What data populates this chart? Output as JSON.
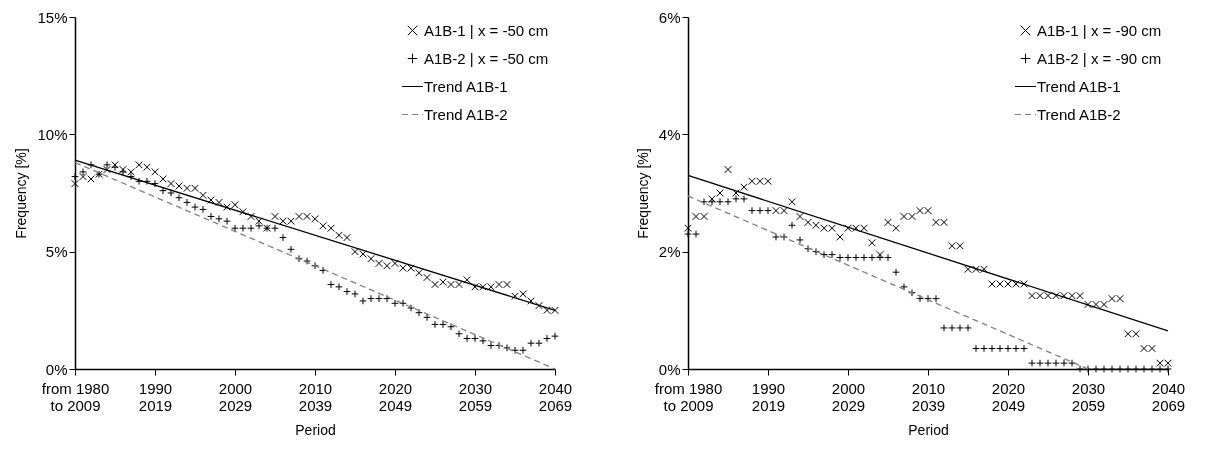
{
  "chart_data": [
    {
      "type": "scatter",
      "xlabel": "Period",
      "ylabel": "Frequency [%]",
      "legend": "top right",
      "grid": false,
      "ylim": [
        0,
        15
      ],
      "yticks": [
        {
          "value": 0,
          "label": "0%"
        },
        {
          "value": 5,
          "label": "5%"
        },
        {
          "value": 10,
          "label": "10%"
        },
        {
          "value": 15,
          "label": "15%"
        }
      ],
      "categories": [
        "from 1980\nto 2009",
        null,
        null,
        null,
        null,
        null,
        null,
        null,
        null,
        null,
        "1990\n2019",
        null,
        null,
        null,
        null,
        null,
        null,
        null,
        null,
        null,
        "2000\n2029",
        null,
        null,
        null,
        null,
        null,
        null,
        null,
        null,
        null,
        "2010\n2039",
        null,
        null,
        null,
        null,
        null,
        null,
        null,
        null,
        null,
        "2020\n2049",
        null,
        null,
        null,
        null,
        null,
        null,
        null,
        null,
        null,
        "2030\n2059",
        null,
        null,
        null,
        null,
        null,
        null,
        null,
        null,
        null,
        "2040\n2069"
      ],
      "series": [
        {
          "name": "A1B-1 | x = -50 cm",
          "marker": "x",
          "color": "#000000",
          "values": [
            7.9,
            8.2,
            8.1,
            8.3,
            8.5,
            8.7,
            8.5,
            8.4,
            8.7,
            8.6,
            8.4,
            8.1,
            7.9,
            7.8,
            7.7,
            7.7,
            7.4,
            7.2,
            7.1,
            6.9,
            7.0,
            6.7,
            6.5,
            6.3,
            6.0,
            6.5,
            6.3,
            6.3,
            6.5,
            6.5,
            6.4,
            6.1,
            6.0,
            5.7,
            5.6,
            5.0,
            4.9,
            4.7,
            4.5,
            4.4,
            4.5,
            4.3,
            4.3,
            4.1,
            3.9,
            3.6,
            3.7,
            3.6,
            3.6,
            3.8,
            3.5,
            3.5,
            3.5,
            3.6,
            3.6,
            3.1,
            3.2,
            2.9,
            2.7,
            2.5,
            2.5
          ]
        },
        {
          "name": "A1B-2 | x = -50 cm",
          "marker": "cross",
          "color": "#000000",
          "values": [
            8.2,
            8.4,
            8.7,
            8.3,
            8.7,
            8.6,
            8.4,
            8.2,
            8.0,
            8.0,
            7.9,
            7.6,
            7.5,
            7.3,
            7.1,
            6.9,
            6.8,
            6.5,
            6.4,
            6.3,
            6.0,
            6.0,
            6.0,
            6.1,
            6.0,
            6.0,
            5.6,
            5.1,
            4.7,
            4.6,
            4.4,
            4.2,
            3.6,
            3.5,
            3.3,
            3.2,
            2.9,
            3.0,
            3.0,
            3.0,
            2.8,
            2.8,
            2.6,
            2.4,
            2.2,
            1.9,
            1.9,
            1.8,
            1.5,
            1.3,
            1.3,
            1.2,
            1.0,
            1.0,
            0.9,
            0.8,
            0.8,
            1.1,
            1.1,
            1.3,
            1.4
          ]
        },
        {
          "name": "Trend A1B-1",
          "type": "line",
          "line_style": "solid",
          "color": "#000000",
          "x": [
            "from 1980\nto 2009",
            "2040\n2069"
          ],
          "values": [
            8.9,
            2.5
          ]
        },
        {
          "name": "Trend A1B-2",
          "type": "line",
          "line_style": "dashed",
          "color": "#808080",
          "x": [
            "from 1980\nto 2009",
            "2040\n2069"
          ],
          "values": [
            8.8,
            0
          ]
        }
      ]
    },
    {
      "type": "scatter",
      "xlabel": "Period",
      "ylabel": "Frequency [%]",
      "legend": "top right",
      "grid": false,
      "ylim": [
        0,
        6
      ],
      "yticks": [
        {
          "value": 0,
          "label": "0%"
        },
        {
          "value": 2,
          "label": "2%"
        },
        {
          "value": 4,
          "label": "4%"
        },
        {
          "value": 6,
          "label": "6%"
        }
      ],
      "categories": [
        "from 1980\nto 2009",
        null,
        null,
        null,
        null,
        null,
        null,
        null,
        null,
        null,
        "1990\n2019",
        null,
        null,
        null,
        null,
        null,
        null,
        null,
        null,
        null,
        "2000\n2029",
        null,
        null,
        null,
        null,
        null,
        null,
        null,
        null,
        null,
        "2010\n2039",
        null,
        null,
        null,
        null,
        null,
        null,
        null,
        null,
        null,
        "2020\n2049",
        null,
        null,
        null,
        null,
        null,
        null,
        null,
        null,
        null,
        "2030\n2059",
        null,
        null,
        null,
        null,
        null,
        null,
        null,
        null,
        null,
        "2040\n2069"
      ],
      "series": [
        {
          "name": "A1B-1 | x = -90 cm",
          "marker": "x",
          "color": "#000000",
          "values": [
            2.4,
            2.6,
            2.6,
            2.9,
            3.0,
            3.4,
            3.0,
            3.1,
            3.2,
            3.2,
            3.2,
            2.7,
            2.7,
            2.85,
            2.6,
            2.5,
            2.45,
            2.4,
            2.4,
            2.25,
            2.4,
            2.4,
            2.4,
            2.15,
            1.95,
            2.5,
            2.4,
            2.6,
            2.6,
            2.7,
            2.7,
            2.5,
            2.5,
            2.1,
            2.1,
            1.7,
            1.7,
            1.7,
            1.45,
            1.45,
            1.45,
            1.45,
            1.45,
            1.25,
            1.25,
            1.25,
            1.25,
            1.25,
            1.25,
            1.25,
            1.1,
            1.1,
            1.1,
            1.2,
            1.2,
            0.6,
            0.6,
            0.35,
            0.35,
            0.1,
            0.1
          ]
        },
        {
          "name": "A1B-2 | x = -90 cm",
          "marker": "cross",
          "color": "#000000",
          "values": [
            2.3,
            2.3,
            2.85,
            2.85,
            2.85,
            2.85,
            2.9,
            2.9,
            2.7,
            2.7,
            2.7,
            2.25,
            2.25,
            2.45,
            2.2,
            2.05,
            2.0,
            1.95,
            1.95,
            1.9,
            1.9,
            1.9,
            1.9,
            1.9,
            1.9,
            1.9,
            1.65,
            1.4,
            1.3,
            1.2,
            1.2,
            1.2,
            0.7,
            0.7,
            0.7,
            0.7,
            0.35,
            0.35,
            0.35,
            0.35,
            0.35,
            0.35,
            0.35,
            0.1,
            0.1,
            0.1,
            0.1,
            0.1,
            0.1,
            0,
            0,
            0,
            0,
            0,
            0,
            0,
            0,
            0,
            0,
            0,
            0
          ]
        },
        {
          "name": "Trend A1B-1",
          "type": "line",
          "line_style": "solid",
          "color": "#000000",
          "x": [
            "from 1980\nto 2009",
            "2040\n2069"
          ],
          "values": [
            3.3,
            0.65
          ]
        },
        {
          "name": "Trend A1B-2",
          "type": "line",
          "line_style": "dashed",
          "color": "#808080",
          "x": [
            "from 1980\nto 2009",
            "2030\n2059"
          ],
          "values": [
            2.95,
            0
          ]
        }
      ]
    }
  ]
}
